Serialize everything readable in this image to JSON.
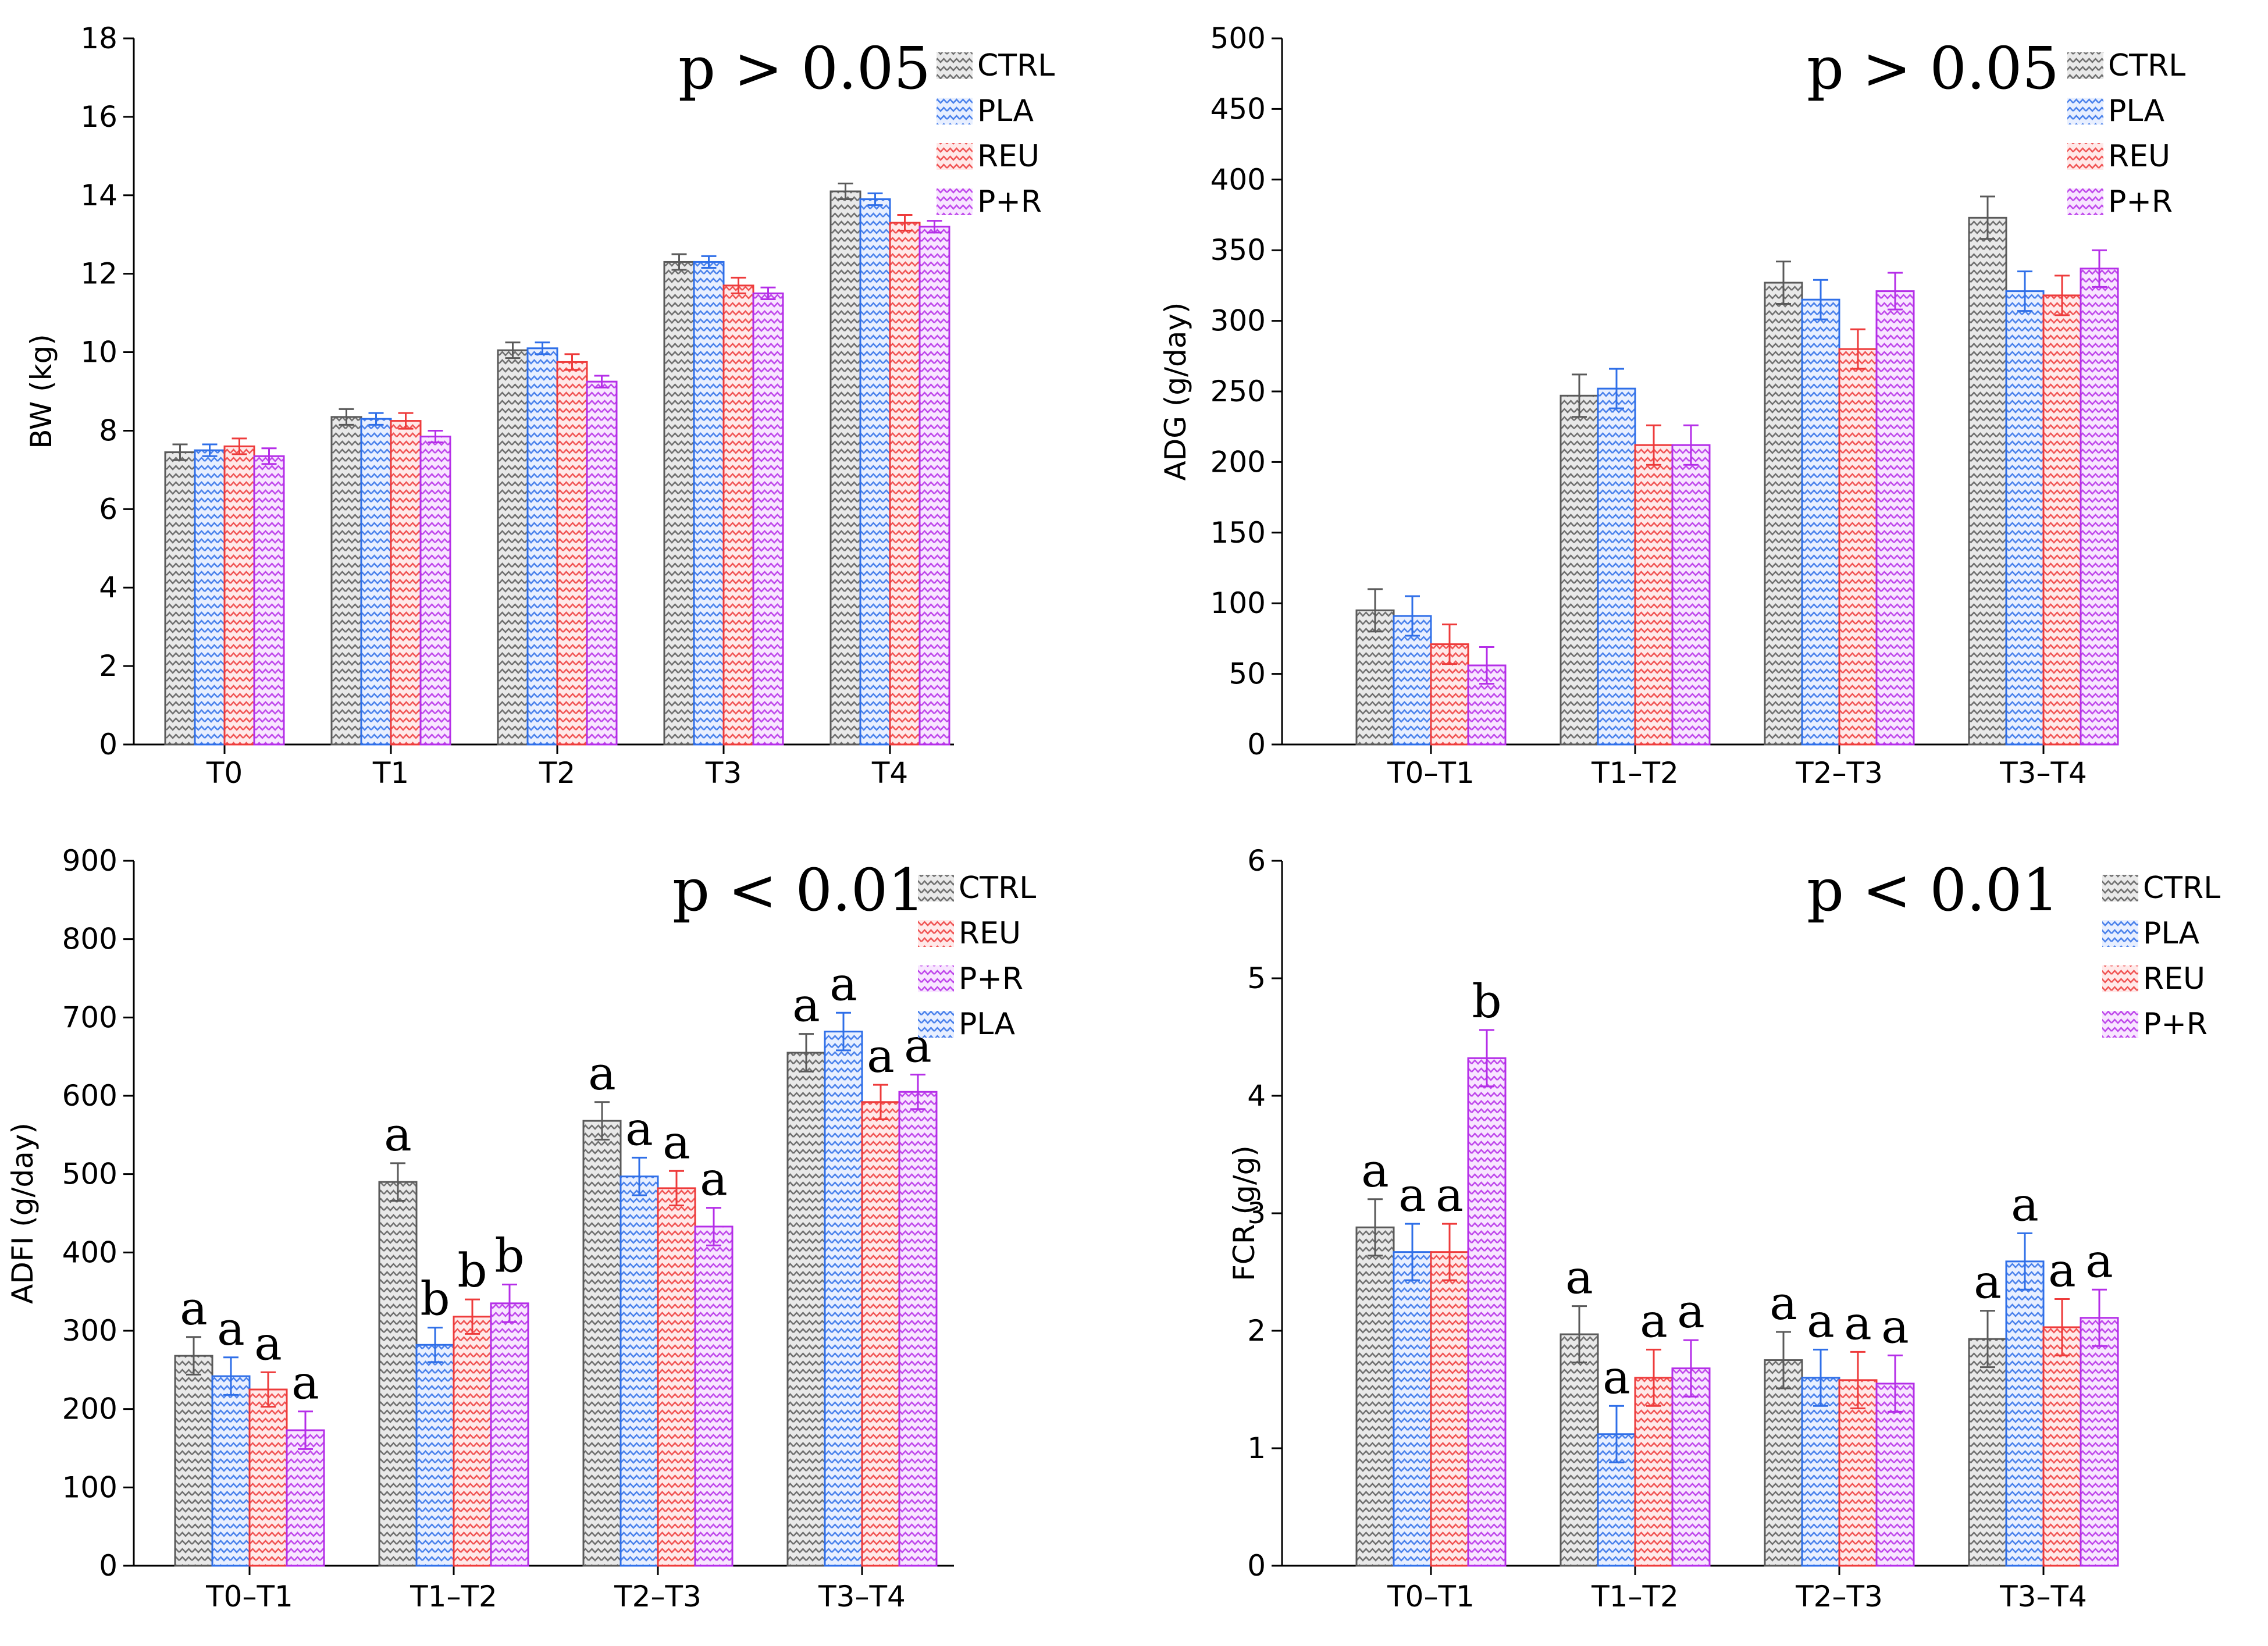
{
  "palette": {
    "CTRL": {
      "fill": "#e9e9e9",
      "stroke": "#5a5a5a"
    },
    "PLA": {
      "fill": "#e8efff",
      "stroke": "#2f6fe8"
    },
    "REU": {
      "fill": "#ffe9e9",
      "stroke": "#ee3b3b"
    },
    "P+R": {
      "fill": "#f8e6ff",
      "stroke": "#b52ee8"
    }
  },
  "chart_data": [
    {
      "type": "bar",
      "ylabel": "BW (kg)",
      "ylim": [
        0,
        18
      ],
      "yticks": [
        0,
        2,
        4,
        6,
        8,
        10,
        12,
        14,
        16,
        18
      ],
      "p_text": "p > 0.05",
      "legend_position": "top-right",
      "categories": [
        "T0",
        "T1",
        "T2",
        "T3",
        "T4"
      ],
      "series": [
        {
          "name": "CTRL",
          "values": [
            7.45,
            8.35,
            10.05,
            12.3,
            14.1
          ],
          "errors": [
            0.2,
            0.2,
            0.2,
            0.2,
            0.2
          ]
        },
        {
          "name": "PLA",
          "values": [
            7.5,
            8.3,
            10.1,
            12.3,
            13.9
          ],
          "errors": [
            0.15,
            0.15,
            0.15,
            0.15,
            0.15
          ]
        },
        {
          "name": "REU",
          "values": [
            7.6,
            8.25,
            9.75,
            11.7,
            13.3
          ],
          "errors": [
            0.2,
            0.2,
            0.2,
            0.2,
            0.2
          ]
        },
        {
          "name": "P+R",
          "values": [
            7.35,
            7.85,
            9.25,
            11.5,
            13.2
          ],
          "errors": [
            0.2,
            0.15,
            0.15,
            0.15,
            0.15
          ]
        }
      ]
    },
    {
      "type": "bar",
      "ylabel": "ADG (g/day)",
      "ylim": [
        0,
        500
      ],
      "yticks": [
        0,
        50,
        100,
        150,
        200,
        250,
        300,
        350,
        400,
        450,
        500
      ],
      "p_text": "p > 0.05",
      "legend_position": "top-right",
      "categories": [
        "T0–T1",
        "T1–T2",
        "T2–T3",
        "T3–T4"
      ],
      "series": [
        {
          "name": "CTRL",
          "values": [
            95,
            247,
            327,
            373
          ],
          "errors": [
            15,
            15,
            15,
            15
          ]
        },
        {
          "name": "PLA",
          "values": [
            91,
            252,
            315,
            321
          ],
          "errors": [
            14,
            14,
            14,
            14
          ]
        },
        {
          "name": "REU",
          "values": [
            71,
            212,
            280,
            318
          ],
          "errors": [
            14,
            14,
            14,
            14
          ]
        },
        {
          "name": "P+R",
          "values": [
            56,
            212,
            321,
            337
          ],
          "errors": [
            13,
            14,
            13,
            13
          ]
        }
      ]
    },
    {
      "type": "bar",
      "ylabel": "ADFI (g/day)",
      "ylim": [
        0,
        900
      ],
      "yticks": [
        0,
        100,
        200,
        300,
        400,
        500,
        600,
        700,
        800,
        900
      ],
      "p_text": "p < 0.01",
      "legend_position": "top-right",
      "legend_order": [
        "CTRL",
        "REU",
        "P+R",
        "PLA"
      ],
      "categories": [
        "T0–T1",
        "T1–T2",
        "T2–T3",
        "T3–T4"
      ],
      "series": [
        {
          "name": "CTRL",
          "values": [
            268,
            490,
            568,
            655
          ],
          "errors": [
            24,
            24,
            24,
            24
          ],
          "letters": [
            "a",
            "a",
            "a",
            "a"
          ]
        },
        {
          "name": "PLA",
          "values": [
            242,
            282,
            497,
            682
          ],
          "errors": [
            24,
            22,
            24,
            24
          ],
          "letters": [
            "a",
            "b",
            "a",
            "a"
          ]
        },
        {
          "name": "REU",
          "values": [
            225,
            318,
            482,
            592
          ],
          "errors": [
            22,
            22,
            22,
            22
          ],
          "letters": [
            "a",
            "b",
            "a",
            "a"
          ]
        },
        {
          "name": "P+R",
          "values": [
            173,
            335,
            433,
            605
          ],
          "errors": [
            24,
            24,
            24,
            22
          ],
          "letters": [
            "a",
            "b",
            "a",
            "a"
          ]
        }
      ]
    },
    {
      "type": "bar",
      "ylabel": "FCR (g/g)",
      "ylim": [
        0,
        6
      ],
      "yticks": [
        0,
        1,
        2,
        3,
        4,
        5,
        6
      ],
      "p_text": "p < 0.01",
      "legend_position": "top-right",
      "categories": [
        "T0–T1",
        "T1–T2",
        "T2–T3",
        "T3–T4"
      ],
      "series": [
        {
          "name": "CTRL",
          "values": [
            2.88,
            1.97,
            1.75,
            1.93
          ],
          "errors": [
            0.24,
            0.24,
            0.24,
            0.24
          ],
          "letters": [
            "a",
            "a",
            "a",
            "a"
          ]
        },
        {
          "name": "PLA",
          "values": [
            2.67,
            1.12,
            1.6,
            2.59
          ],
          "errors": [
            0.24,
            0.24,
            0.24,
            0.24
          ],
          "letters": [
            "a",
            "a",
            "a",
            "a"
          ]
        },
        {
          "name": "REU",
          "values": [
            2.67,
            1.6,
            1.58,
            2.03
          ],
          "errors": [
            0.24,
            0.24,
            0.24,
            0.24
          ],
          "letters": [
            "a",
            "a",
            "a",
            "a"
          ]
        },
        {
          "name": "P+R",
          "values": [
            4.32,
            1.68,
            1.55,
            2.11
          ],
          "errors": [
            0.24,
            0.24,
            0.24,
            0.24
          ],
          "letters": [
            "b",
            "a",
            "a",
            "a"
          ]
        }
      ]
    }
  ]
}
